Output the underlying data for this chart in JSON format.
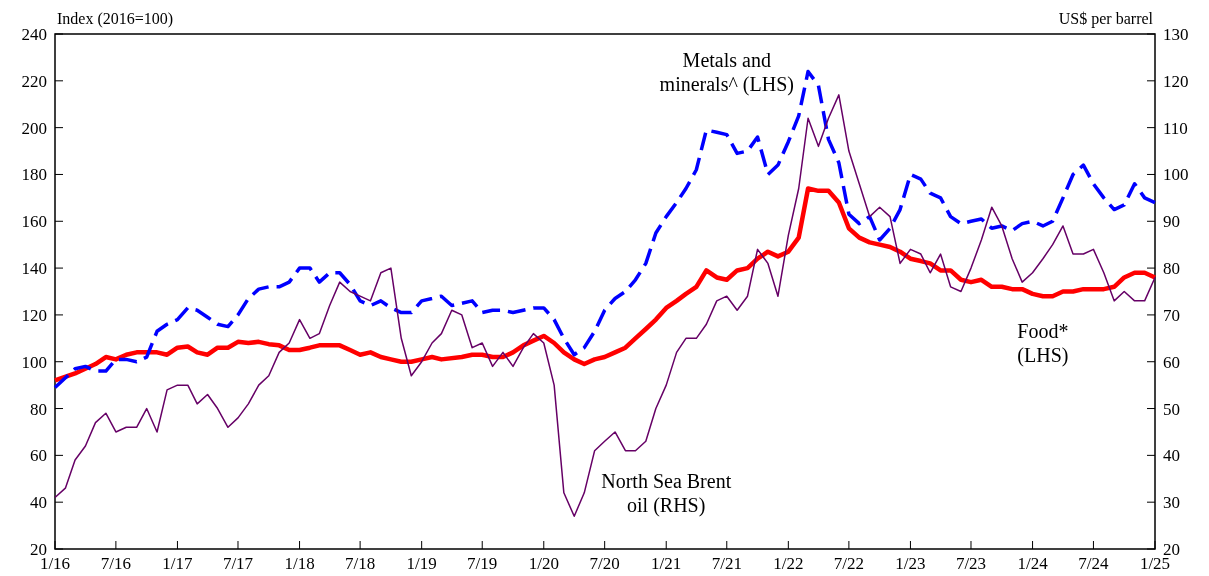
{
  "chart_data": {
    "type": "line",
    "ylabel": "Index (2016=100)",
    "y2label": "US$ per barrel",
    "xlim": [
      "2016-01",
      "2025-01"
    ],
    "xticks": [
      {
        "value": "2016-01",
        "label": "1/16"
      },
      {
        "value": "2016-07",
        "label": "7/16"
      },
      {
        "value": "2017-01",
        "label": "1/17"
      },
      {
        "value": "2017-07",
        "label": "7/17"
      },
      {
        "value": "2018-01",
        "label": "1/18"
      },
      {
        "value": "2018-07",
        "label": "7/18"
      },
      {
        "value": "2019-01",
        "label": "1/19"
      },
      {
        "value": "2019-07",
        "label": "7/19"
      },
      {
        "value": "2020-01",
        "label": "1/20"
      },
      {
        "value": "2020-07",
        "label": "7/20"
      },
      {
        "value": "2021-01",
        "label": "1/21"
      },
      {
        "value": "2021-07",
        "label": "7/21"
      },
      {
        "value": "2022-01",
        "label": "1/22"
      },
      {
        "value": "2022-07",
        "label": "7/22"
      },
      {
        "value": "2023-01",
        "label": "1/23"
      },
      {
        "value": "2023-07",
        "label": "7/23"
      },
      {
        "value": "2024-01",
        "label": "1/24"
      },
      {
        "value": "2024-07",
        "label": "7/24"
      },
      {
        "value": "2025-01",
        "label": "1/25"
      }
    ],
    "ylim": [
      20,
      240
    ],
    "yticks": [
      20,
      40,
      60,
      80,
      100,
      120,
      140,
      160,
      180,
      200,
      220,
      240
    ],
    "y2lim": [
      20,
      130
    ],
    "y2ticks": [
      20,
      30,
      40,
      50,
      60,
      70,
      80,
      90,
      100,
      110,
      120,
      130
    ],
    "grid": false,
    "legend": false,
    "series": [
      {
        "name": "Food* (LHS)",
        "color": "#ff0000",
        "line_style": "solid",
        "x": [
          "2016-01",
          "2016-03",
          "2016-05",
          "2016-06",
          "2016-07",
          "2016-08",
          "2016-09",
          "2016-11",
          "2016-12",
          "2017-01",
          "2017-02",
          "2017-03",
          "2017-04",
          "2017-05",
          "2017-06",
          "2017-07",
          "2017-08",
          "2017-09",
          "2017-10",
          "2017-11",
          "2017-12",
          "2018-01",
          "2018-02",
          "2018-03",
          "2018-04",
          "2018-05",
          "2018-06",
          "2018-07",
          "2018-08",
          "2018-09",
          "2018-10",
          "2018-11",
          "2018-12",
          "2019-01",
          "2019-02",
          "2019-03",
          "2019-05",
          "2019-06",
          "2019-07",
          "2019-08",
          "2019-09",
          "2019-10",
          "2019-11",
          "2019-12",
          "2020-01",
          "2020-02",
          "2020-03",
          "2020-04",
          "2020-05",
          "2020-06",
          "2020-07",
          "2020-08",
          "2020-09",
          "2020-10",
          "2020-11",
          "2020-12",
          "2021-01",
          "2021-02",
          "2021-03",
          "2021-04",
          "2021-05",
          "2021-06",
          "2021-07",
          "2021-08",
          "2021-09",
          "2021-10",
          "2021-11",
          "2021-12",
          "2022-01",
          "2022-02",
          "2022-03",
          "2022-04",
          "2022-05",
          "2022-06",
          "2022-07",
          "2022-08",
          "2022-09",
          "2022-10",
          "2022-11",
          "2022-12",
          "2023-01",
          "2023-02",
          "2023-03",
          "2023-04",
          "2023-05",
          "2023-06",
          "2023-07",
          "2023-08",
          "2023-09",
          "2023-10",
          "2023-11",
          "2023-12",
          "2024-01",
          "2024-02",
          "2024-03",
          "2024-04",
          "2024-05",
          "2024-06",
          "2024-07",
          "2024-08",
          "2024-09",
          "2024-10",
          "2024-11",
          "2024-12",
          "2025-01"
        ],
        "values": [
          92,
          95,
          99,
          102,
          101,
          103,
          104,
          104,
          103,
          106,
          106.5,
          104,
          103,
          106,
          106,
          108.5,
          108,
          108.5,
          107.5,
          107,
          105,
          105,
          106,
          107,
          107,
          107,
          105,
          103,
          104,
          102,
          101,
          100,
          100,
          101,
          102,
          101,
          102,
          103,
          103,
          102,
          102,
          104,
          107,
          109,
          111,
          108,
          104,
          101,
          99,
          101,
          102,
          104,
          106,
          110,
          114,
          118,
          123,
          126,
          129,
          132,
          139,
          136,
          135,
          139,
          140,
          144,
          147,
          145,
          147,
          153,
          174,
          173,
          173,
          168,
          157,
          153,
          151,
          150,
          149,
          147,
          144,
          143,
          142,
          139,
          139,
          135,
          134,
          135,
          132,
          132,
          131,
          131,
          129,
          128,
          128,
          130,
          130,
          131,
          131,
          131,
          132,
          136,
          138,
          138,
          136
        ]
      },
      {
        "name": "Metals and minerals^ (LHS)",
        "color": "#0000ff",
        "line_style": "dashed",
        "x": [
          "2016-01",
          "2016-03",
          "2016-04",
          "2016-05",
          "2016-06",
          "2016-07",
          "2016-08",
          "2016-09",
          "2016-10",
          "2016-11",
          "2016-12",
          "2017-01",
          "2017-02",
          "2017-03",
          "2017-04",
          "2017-05",
          "2017-06",
          "2017-07",
          "2017-08",
          "2017-09",
          "2017-10",
          "2017-11",
          "2017-12",
          "2018-01",
          "2018-02",
          "2018-03",
          "2018-04",
          "2018-05",
          "2018-06",
          "2018-07",
          "2018-08",
          "2018-09",
          "2018-10",
          "2018-11",
          "2018-12",
          "2019-01",
          "2019-02",
          "2019-03",
          "2019-04",
          "2019-05",
          "2019-06",
          "2019-07",
          "2019-08",
          "2019-09",
          "2019-10",
          "2019-11",
          "2019-12",
          "2020-01",
          "2020-02",
          "2020-03",
          "2020-04",
          "2020-05",
          "2020-06",
          "2020-07",
          "2020-08",
          "2020-09",
          "2020-10",
          "2020-11",
          "2020-12",
          "2021-01",
          "2021-02",
          "2021-03",
          "2021-04",
          "2021-05",
          "2021-06",
          "2021-07",
          "2021-08",
          "2021-09",
          "2021-10",
          "2021-11",
          "2021-12",
          "2022-01",
          "2022-02",
          "2022-03",
          "2022-04",
          "2022-05",
          "2022-06",
          "2022-07",
          "2022-08",
          "2022-09",
          "2022-10",
          "2022-11",
          "2022-12",
          "2023-01",
          "2023-02",
          "2023-03",
          "2023-04",
          "2023-05",
          "2023-06",
          "2023-07",
          "2023-08",
          "2023-09",
          "2023-10",
          "2023-11",
          "2023-12",
          "2024-01",
          "2024-02",
          "2024-03",
          "2024-04",
          "2024-05",
          "2024-06",
          "2024-07",
          "2024-08",
          "2024-09",
          "2024-10",
          "2024-11",
          "2024-12",
          "2025-01"
        ],
        "values": [
          89,
          97,
          98,
          96,
          96,
          101,
          101,
          100,
          102,
          113,
          116,
          118,
          123,
          122,
          119,
          116,
          115,
          120,
          127,
          131,
          132,
          132,
          134,
          140,
          140,
          134,
          138,
          138,
          133,
          126,
          124,
          126,
          123,
          121,
          121,
          126,
          127,
          128,
          124,
          125,
          126,
          121,
          122,
          122,
          121,
          122,
          123,
          123,
          118,
          110,
          103,
          106,
          113,
          122,
          127,
          130,
          135,
          142,
          155,
          162,
          168,
          174,
          182,
          199,
          198,
          197,
          189,
          190,
          196,
          180,
          184,
          194,
          205,
          224,
          218,
          195,
          185,
          163,
          159,
          162,
          152,
          157,
          165,
          180,
          178,
          172,
          170,
          162,
          159,
          160,
          161,
          157,
          158,
          156,
          159,
          160,
          158,
          160,
          170,
          180,
          184,
          176,
          170,
          165,
          167,
          176,
          170,
          168
        ]
      },
      {
        "name": "North Sea Brent oil (RHS)",
        "color": "#660066",
        "line_style": "solid",
        "axis": "y2",
        "x": [
          "2016-01",
          "2016-02",
          "2016-03",
          "2016-04",
          "2016-05",
          "2016-06",
          "2016-07",
          "2016-08",
          "2016-09",
          "2016-10",
          "2016-11",
          "2016-12",
          "2017-01",
          "2017-02",
          "2017-03",
          "2017-04",
          "2017-05",
          "2017-06",
          "2017-07",
          "2017-08",
          "2017-09",
          "2017-10",
          "2017-11",
          "2017-12",
          "2018-01",
          "2018-02",
          "2018-03",
          "2018-04",
          "2018-05",
          "2018-06",
          "2018-07",
          "2018-08",
          "2018-09",
          "2018-10",
          "2018-11",
          "2018-12",
          "2019-01",
          "2019-02",
          "2019-03",
          "2019-04",
          "2019-05",
          "2019-06",
          "2019-07",
          "2019-08",
          "2019-09",
          "2019-10",
          "2019-11",
          "2019-12",
          "2020-01",
          "2020-02",
          "2020-03",
          "2020-04",
          "2020-05",
          "2020-06",
          "2020-07",
          "2020-08",
          "2020-09",
          "2020-10",
          "2020-11",
          "2020-12",
          "2021-01",
          "2021-02",
          "2021-03",
          "2021-04",
          "2021-05",
          "2021-06",
          "2021-07",
          "2021-08",
          "2021-09",
          "2021-10",
          "2021-11",
          "2021-12",
          "2022-01",
          "2022-02",
          "2022-03",
          "2022-04",
          "2022-05",
          "2022-06",
          "2022-07",
          "2022-08",
          "2022-09",
          "2022-10",
          "2022-11",
          "2022-12",
          "2023-01",
          "2023-02",
          "2023-03",
          "2023-04",
          "2023-05",
          "2023-06",
          "2023-07",
          "2023-08",
          "2023-09",
          "2023-10",
          "2023-11",
          "2023-12",
          "2024-01",
          "2024-02",
          "2024-03",
          "2024-04",
          "2024-05",
          "2024-06",
          "2024-07",
          "2024-08",
          "2024-09",
          "2024-10",
          "2024-11",
          "2024-12",
          "2025-01"
        ],
        "values": [
          31,
          33,
          39,
          42,
          47,
          49,
          45,
          46,
          46,
          50,
          45,
          54,
          55,
          55,
          51,
          53,
          50,
          46,
          48,
          51,
          55,
          57,
          62,
          64,
          69,
          65,
          66,
          72,
          77,
          75,
          74,
          73,
          79,
          80,
          65,
          57,
          60,
          64,
          66,
          71,
          70,
          63,
          64,
          59,
          62,
          59,
          63,
          66,
          64,
          55,
          32,
          27,
          32,
          41,
          43,
          45,
          41,
          41,
          43,
          50,
          55,
          62,
          65,
          65,
          68,
          73,
          74,
          71,
          74,
          84,
          81,
          74,
          87,
          97,
          112,
          106,
          112,
          117,
          105,
          98,
          91,
          93,
          91,
          81,
          84,
          83,
          79,
          83,
          76,
          75,
          80,
          86,
          93,
          89,
          82,
          77,
          79,
          82,
          85,
          89,
          83,
          83,
          84,
          79,
          73,
          75,
          73,
          73,
          78
        ]
      }
    ]
  }
}
